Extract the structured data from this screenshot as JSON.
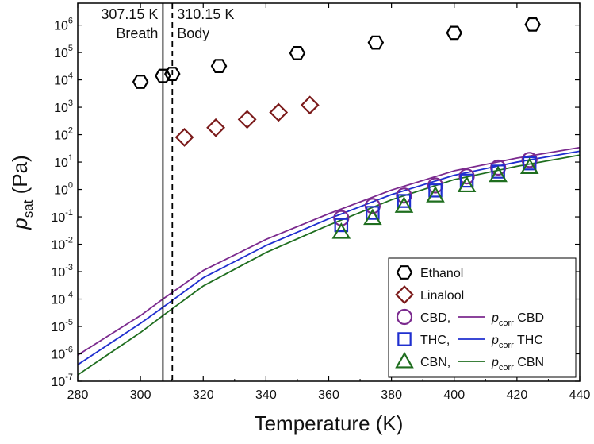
{
  "chart_data": {
    "type": "scatter",
    "xlabel": "Temperature (K)",
    "ylabel": {
      "base": "p",
      "sub": "sat",
      "unit": " (Pa)"
    },
    "xlim": [
      280,
      440
    ],
    "ylim_log10": [
      -7,
      6.8
    ],
    "yscale": "log",
    "x_ticks": [
      280,
      300,
      320,
      340,
      360,
      380,
      400,
      420,
      440
    ],
    "y_tick_exponents": [
      -7,
      -6,
      -5,
      -4,
      -3,
      -2,
      -1,
      0,
      1,
      2,
      3,
      4,
      5,
      6
    ],
    "y_tick_base": "10",
    "grid": false,
    "legend_position": "bottom-right",
    "vertical_lines": [
      {
        "x": 307.15,
        "style": "solid",
        "label_value": "307.15 K",
        "label_name": "Breath"
      },
      {
        "x": 310.15,
        "style": "dashed",
        "label_value": "310.15 K",
        "label_name": "Body"
      }
    ],
    "series": [
      {
        "name": "Ethanol",
        "kind": "points",
        "marker": "hexagon",
        "color": "#000000",
        "x": [
          300,
          307.15,
          310.15,
          325,
          350,
          375,
          400,
          425
        ],
        "y": [
          8500,
          14000,
          16500,
          32000,
          95000,
          230000,
          520000,
          1050000
        ]
      },
      {
        "name": "Linalool",
        "kind": "points",
        "marker": "diamond",
        "color": "#7b1a1a",
        "x": [
          314,
          324,
          334,
          344,
          354
        ],
        "y": [
          80,
          180,
          360,
          650,
          1200
        ]
      },
      {
        "name": "CBD,",
        "kind": "points",
        "marker": "circle",
        "color": "#7b2a8e",
        "x": [
          364,
          374,
          384,
          394,
          404,
          414,
          424
        ],
        "y": [
          0.09,
          0.25,
          0.6,
          1.4,
          3.0,
          6.3,
          12.0
        ]
      },
      {
        "name": "THC,",
        "kind": "points",
        "marker": "square",
        "color": "#1f2fcf",
        "x": [
          364,
          374,
          384,
          394,
          404,
          414,
          424
        ],
        "y": [
          0.05,
          0.14,
          0.38,
          0.92,
          2.1,
          4.5,
          9.0
        ]
      },
      {
        "name": "CBN,",
        "kind": "points",
        "marker": "triangle",
        "color": "#1f6e1f",
        "x": [
          364,
          374,
          384,
          394,
          404,
          414,
          424
        ],
        "y": [
          0.028,
          0.09,
          0.25,
          0.6,
          1.4,
          3.3,
          6.5
        ]
      },
      {
        "name": "CBD",
        "kind": "line",
        "color": "#7b2a8e",
        "x": [
          280,
          300,
          307.15,
          320,
          340,
          360,
          380,
          400,
          420,
          440
        ],
        "y": [
          9e-07,
          2.5e-05,
          0.0001,
          0.0011,
          0.015,
          0.13,
          0.95,
          4.8,
          14,
          34
        ]
      },
      {
        "name": "THC",
        "kind": "line",
        "color": "#1f2fcf",
        "x": [
          280,
          300,
          307.15,
          320,
          340,
          360,
          380,
          400,
          420,
          440
        ],
        "y": [
          4e-07,
          1.3e-05,
          5e-05,
          0.0006,
          0.009,
          0.085,
          0.65,
          3.3,
          10,
          25
        ]
      },
      {
        "name": "CBN",
        "kind": "line",
        "color": "#1f6e1f",
        "x": [
          280,
          300,
          307.15,
          320,
          340,
          360,
          380,
          400,
          420,
          440
        ],
        "y": [
          1.7e-07,
          6e-06,
          2.5e-05,
          0.0003,
          0.005,
          0.05,
          0.42,
          2.3,
          7,
          18
        ]
      }
    ],
    "legend": [
      {
        "label": "Ethanol",
        "marker": "hexagon",
        "color": "#000000"
      },
      {
        "label": "Linalool",
        "marker": "diamond",
        "color": "#7b1a1a"
      },
      {
        "label": "CBD,",
        "marker": "circle",
        "color": "#7b2a8e",
        "line_prefix": "p",
        "line_sub": "corr",
        "line_label": "CBD"
      },
      {
        "label": "THC,",
        "marker": "square",
        "color": "#1f2fcf",
        "line_prefix": "p",
        "line_sub": "corr",
        "line_label": "THC"
      },
      {
        "label": "CBN,",
        "marker": "triangle",
        "color": "#1f6e1f",
        "line_prefix": "p",
        "line_sub": "corr",
        "line_label": "CBN"
      }
    ]
  }
}
